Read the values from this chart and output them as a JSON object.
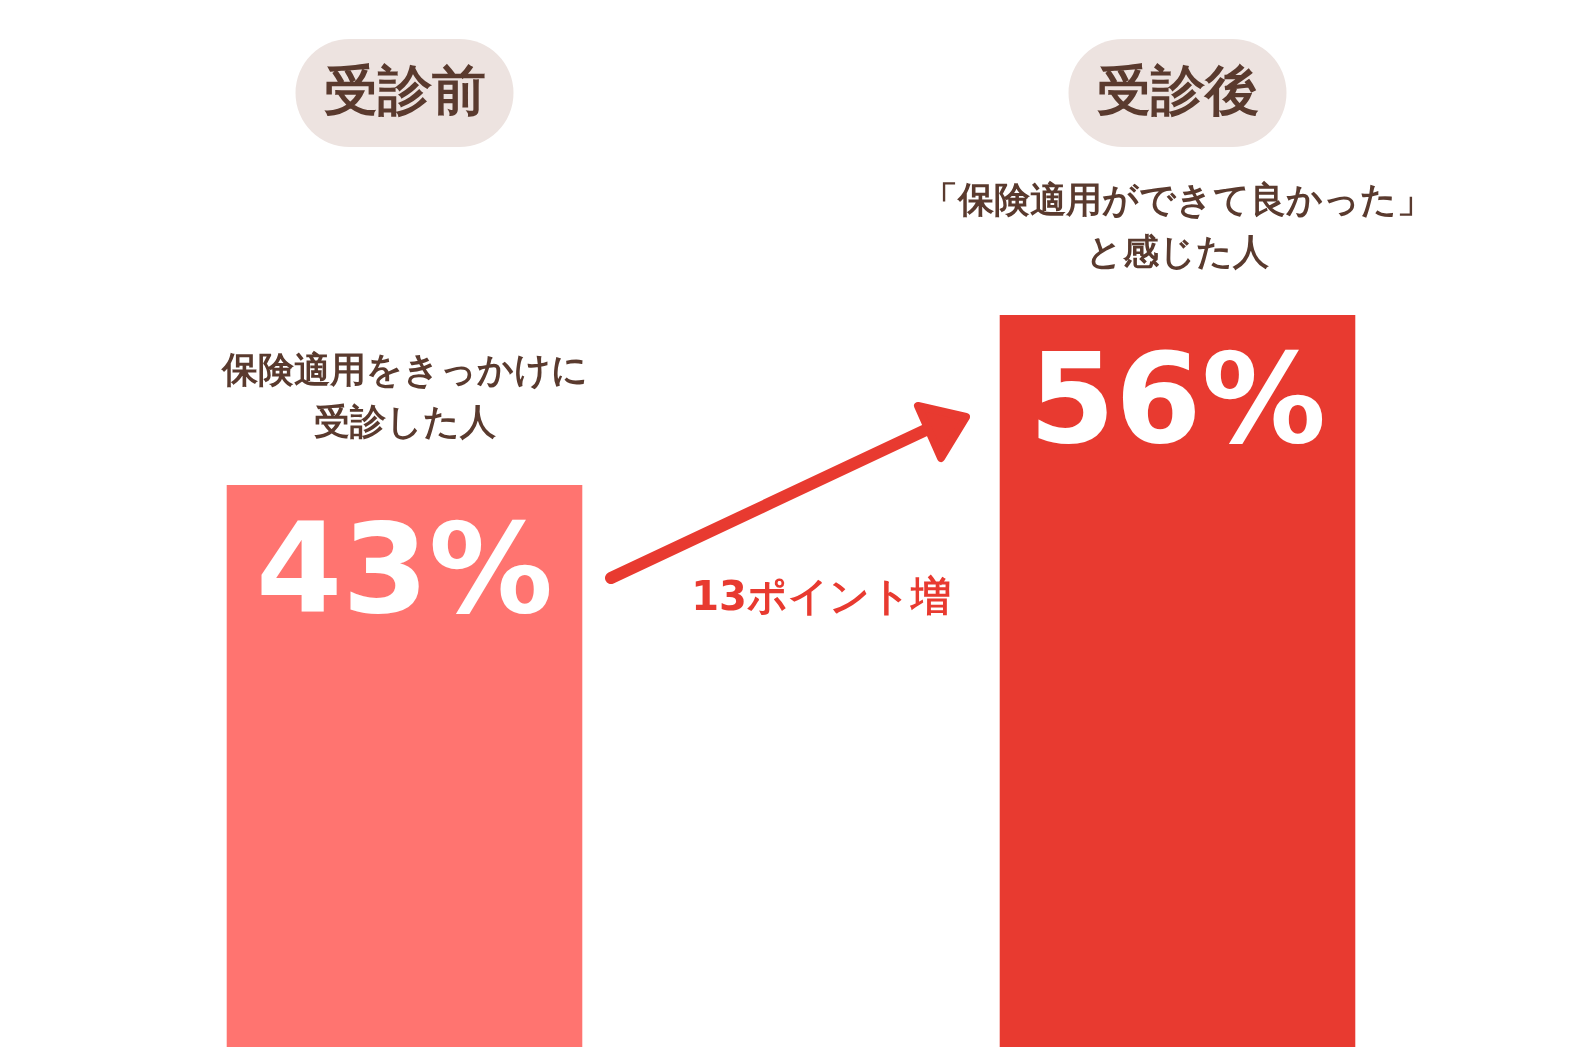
{
  "chart_data": {
    "type": "bar",
    "categories": [
      "受診前",
      "受診後"
    ],
    "values": [
      43,
      56
    ],
    "colors": [
      "#ff7470",
      "#e83a30"
    ],
    "value_labels": [
      "43%",
      "56%"
    ],
    "annotations": [
      {
        "text": "保険適用をきっかけに",
        "x": "受診前",
        "y": 43
      },
      {
        "text": "受診した人",
        "x": "受診前",
        "y": 43
      },
      {
        "text": "「保険適用ができて良かった」",
        "x": "受診後",
        "y": 56
      },
      {
        "text": "と感じた人",
        "x": "受診後",
        "y": 56
      },
      "13ポイント増"
    ],
    "legend": false
  }
}
